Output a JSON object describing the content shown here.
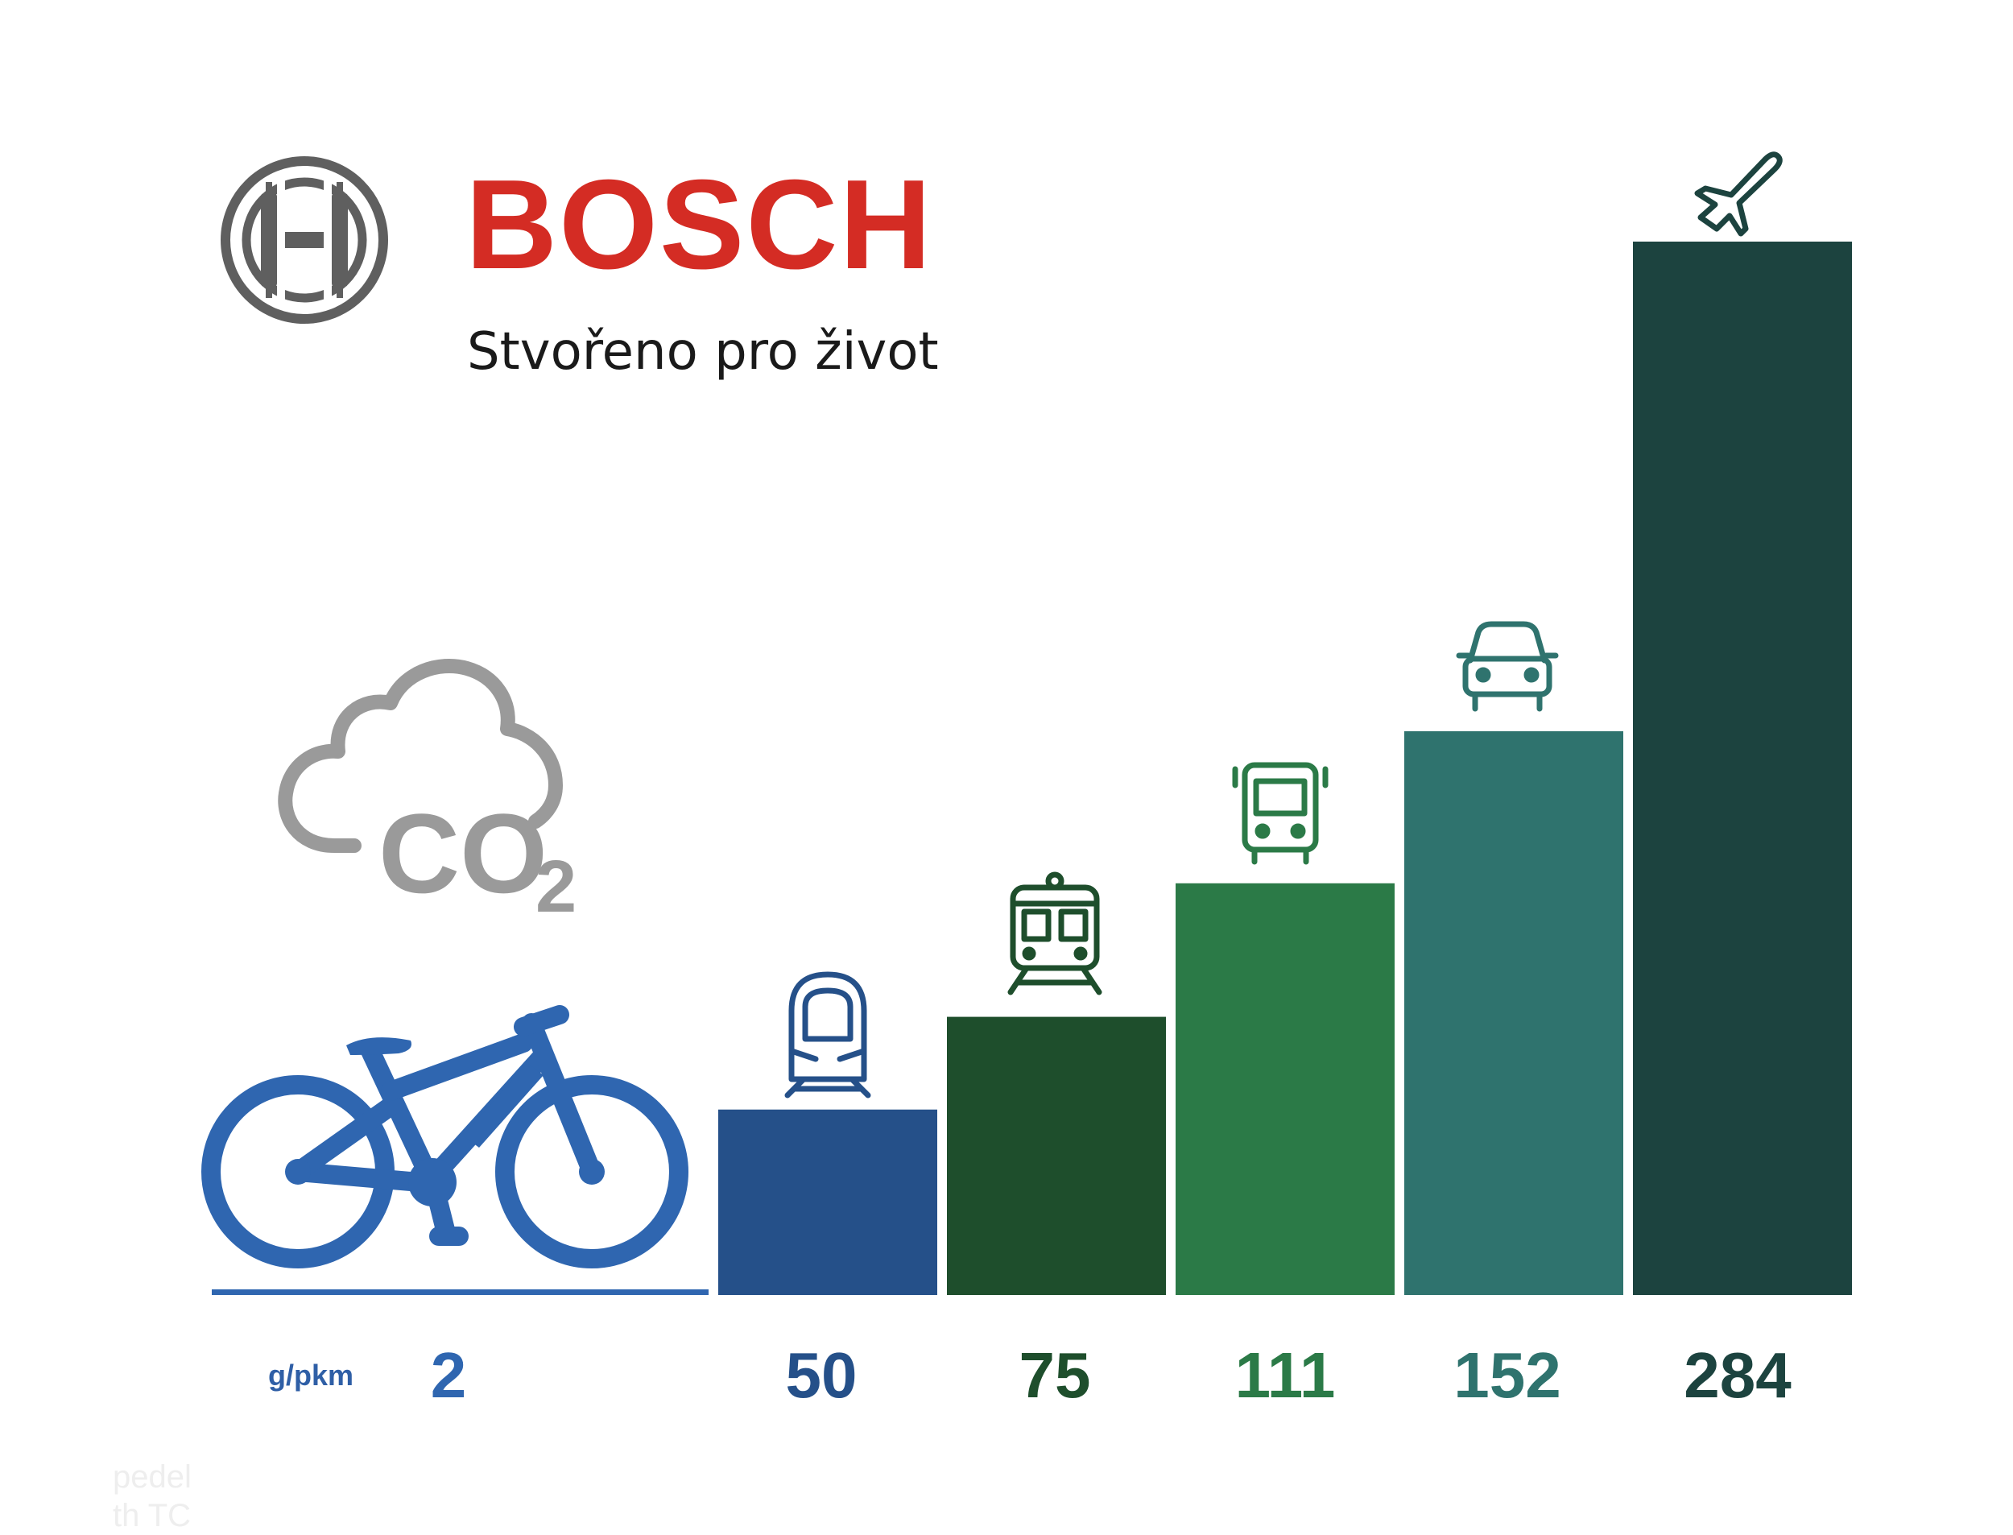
{
  "brand": {
    "name": "BOSCH",
    "tagline": "Stvořeno pro život",
    "logo_icon": "bosch-armature-icon",
    "logo_color": "#5f5f5f",
    "name_color": "#d42c24"
  },
  "co2_label": {
    "main": "CO",
    "sub": "2",
    "icon": "cloud-icon",
    "color": "#9a9a9a"
  },
  "chart_data": {
    "type": "bar",
    "unit": "g/pkm",
    "categories": [
      "e-bike",
      "high-speed train",
      "train",
      "bus",
      "car",
      "plane"
    ],
    "values": [
      2,
      50,
      75,
      111,
      152,
      284
    ],
    "labels": [
      "2",
      "50",
      "75",
      "111",
      "152",
      "284"
    ],
    "icons": [
      "bicycle-icon",
      "high-speed-train-icon",
      "train-icon",
      "bus-icon",
      "car-icon",
      "airplane-icon"
    ],
    "colors": [
      "#2f66b0",
      "#255089",
      "#1e4e2c",
      "#2b7a47",
      "#2f736e",
      "#1c433f"
    ],
    "label_colors": [
      "#2f66b0",
      "#255089",
      "#1e4e2c",
      "#2b7a47",
      "#2f736e",
      "#1c433f"
    ],
    "title": "",
    "xlabel": "",
    "ylabel": "",
    "ylim": [
      0,
      284
    ],
    "grid": false,
    "legend": "none"
  },
  "footer_faint": [
    "pedel",
    "th TC"
  ]
}
